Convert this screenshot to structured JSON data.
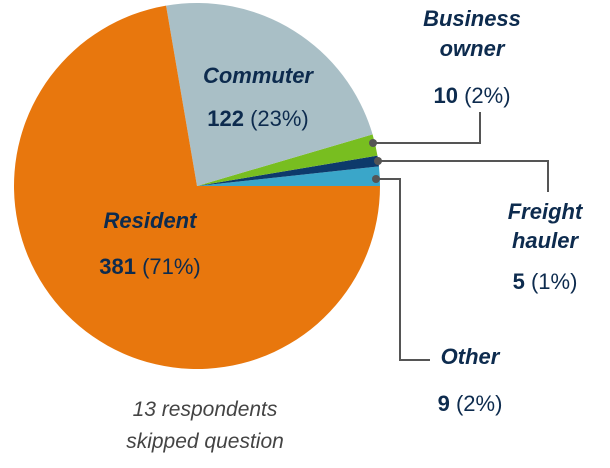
{
  "chart_data": {
    "type": "pie",
    "categories": [
      "Other",
      "Freight hauler",
      "Business owner",
      "Commuter",
      "Resident"
    ],
    "values": [
      9,
      5,
      10,
      122,
      381
    ],
    "share_labels": [
      "(2%)",
      "(1%)",
      "(2%)",
      "(23%)",
      "(71%)"
    ],
    "colors": [
      "#3aa6c9",
      "#0d3a6b",
      "#78be20",
      "#a9bfc6",
      "#e8770d"
    ],
    "note": "13 respondents skipped question"
  }
}
